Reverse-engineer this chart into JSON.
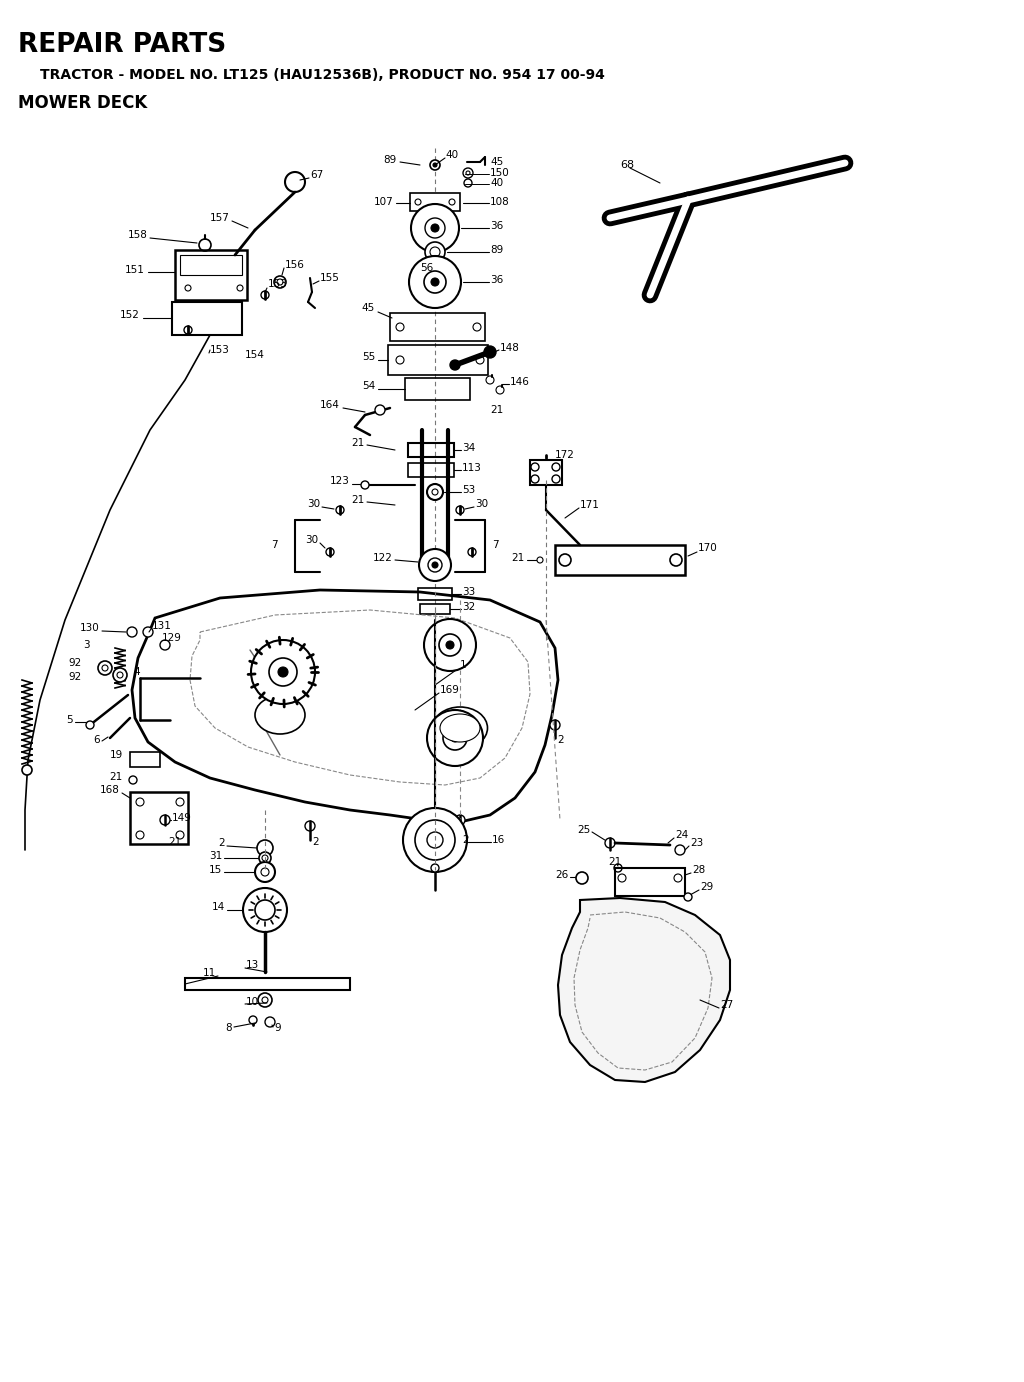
{
  "title_line1": "REPAIR PARTS",
  "title_line2": "    TRACTOR - MODEL NO. LT125 (HAU12536B), PRODUCT NO. 954 17 00-94",
  "title_line3": "MOWER DECK",
  "bg_color": "#ffffff",
  "line_color": "#000000",
  "fig_width": 10.24,
  "fig_height": 13.82,
  "dpi": 100,
  "belt_color": "#000000",
  "gray_color": "#888888"
}
